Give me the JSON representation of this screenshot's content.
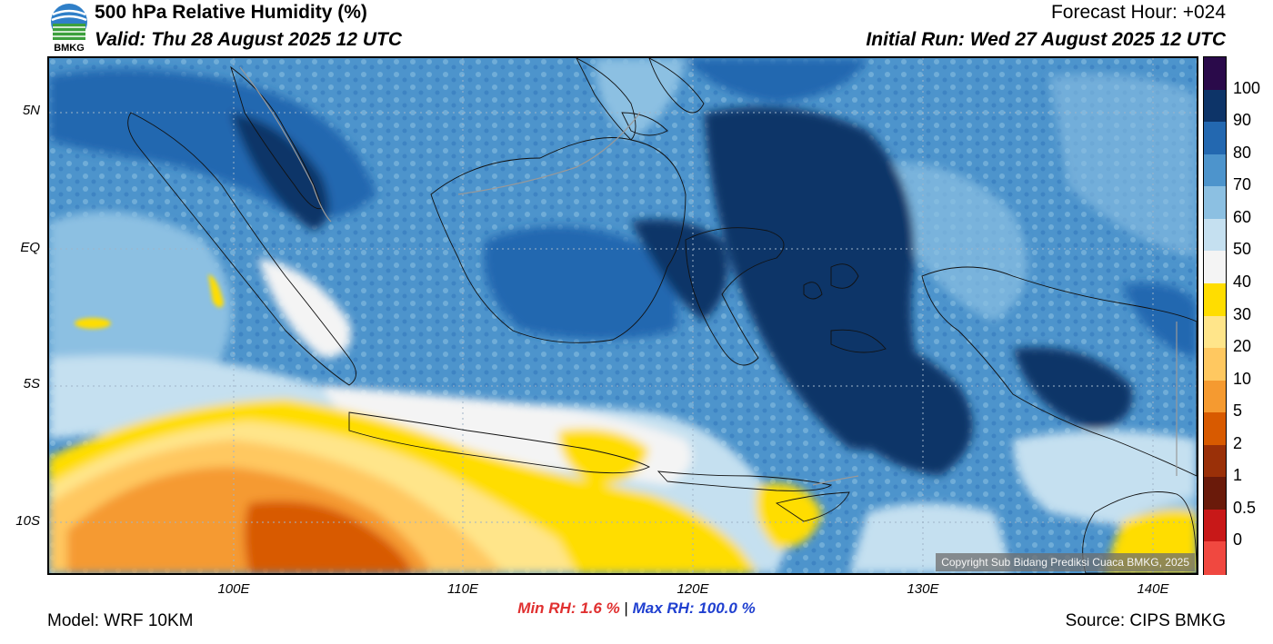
{
  "header": {
    "title": "500 hPa Relative Humidity (%)",
    "valid": "Valid: Thu 28 August 2025 12 UTC",
    "forecast_hour": "Forecast Hour: +024",
    "initial_run": "Initial Run: Wed 27 August 2025 12 UTC"
  },
  "logo": {
    "text": "BMKG",
    "icon": "bmkg-logo-icon"
  },
  "map": {
    "copyright": "Copyright Sub Bidang Prediksi Cuaca BMKG, 2025",
    "lat_labels": [
      "5N",
      "EQ",
      "5S",
      "10S"
    ],
    "lon_labels": [
      "100E",
      "110E",
      "120E",
      "130E",
      "140E"
    ]
  },
  "colorbar": {
    "labels": [
      "100",
      "90",
      "80",
      "70",
      "60",
      "50",
      "40",
      "30",
      "20",
      "10",
      "5",
      "2",
      "1",
      "0.5",
      "0"
    ],
    "colors": [
      "#2a0a4a",
      "#0d3468",
      "#2368b0",
      "#4d94cc",
      "#8cc0e2",
      "#c5e0f0",
      "#f4f4f4",
      "#ffdd00",
      "#ffe58a",
      "#ffc860",
      "#f59a30",
      "#d85a00",
      "#9a3008",
      "#6a1a0a",
      "#c81818",
      "#f04840"
    ]
  },
  "stats": {
    "min_rh": "Min RH:   1.6 %",
    "separator": "|",
    "max_rh": "Max RH: 100.0 %"
  },
  "footer": {
    "model": "Model: WRF 10KM",
    "source": "Source: CIPS BMKG"
  }
}
